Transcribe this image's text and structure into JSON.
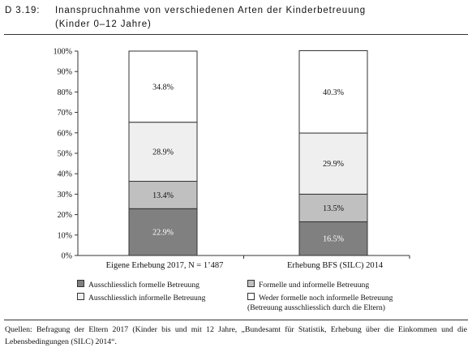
{
  "header": {
    "number": "D 3.19:",
    "title": "Inanspruchnahme von verschiedenen Arten der Kinderbetreuung",
    "subtitle": "(Kinder 0–12 Jahre)"
  },
  "chart_data": {
    "type": "bar",
    "stacked": true,
    "categories": [
      "Eigene Erhebung 2017, N = 1’487",
      "Erhebung BFS (SILC) 2014"
    ],
    "series": [
      {
        "name": "Ausschliesslich formelle Betreuung",
        "values": [
          22.9,
          16.5
        ],
        "color": "#808080",
        "labels": [
          "22.9%",
          "16.5%"
        ],
        "label_color": "#ffffff"
      },
      {
        "name": "Formelle und informelle Betreuung",
        "values": [
          13.4,
          13.5
        ],
        "color": "#c0c0c0",
        "labels": [
          "13.4%",
          "13.5%"
        ],
        "label_color": "#111111"
      },
      {
        "name": "Ausschliesslich informelle Betreuung",
        "values": [
          28.9,
          29.9
        ],
        "color": "#efefef",
        "labels": [
          "28.9%",
          "29.9%"
        ],
        "label_color": "#111111"
      },
      {
        "name": "Weder formelle noch informelle Betreuung\n(Betreuung ausschliesslich durch die Eltern)",
        "values": [
          34.8,
          40.3
        ],
        "color": "#ffffff",
        "labels": [
          "34.8%",
          "40.3%"
        ],
        "label_color": "#111111"
      }
    ],
    "y_ticks": [
      "0%",
      "10%",
      "20%",
      "30%",
      "40%",
      "50%",
      "60%",
      "70%",
      "80%",
      "90%",
      "100%"
    ],
    "ylim": [
      0,
      100
    ],
    "grid": false,
    "legend_position": "bottom"
  },
  "sources": "Quellen: Befragung der Eltern 2017 (Kinder bis und mit 12 Jahre, „Bundesamt für Statistik, Erhebung über die Einkommen und die Lebensbedingungen (SILC) 2014“."
}
